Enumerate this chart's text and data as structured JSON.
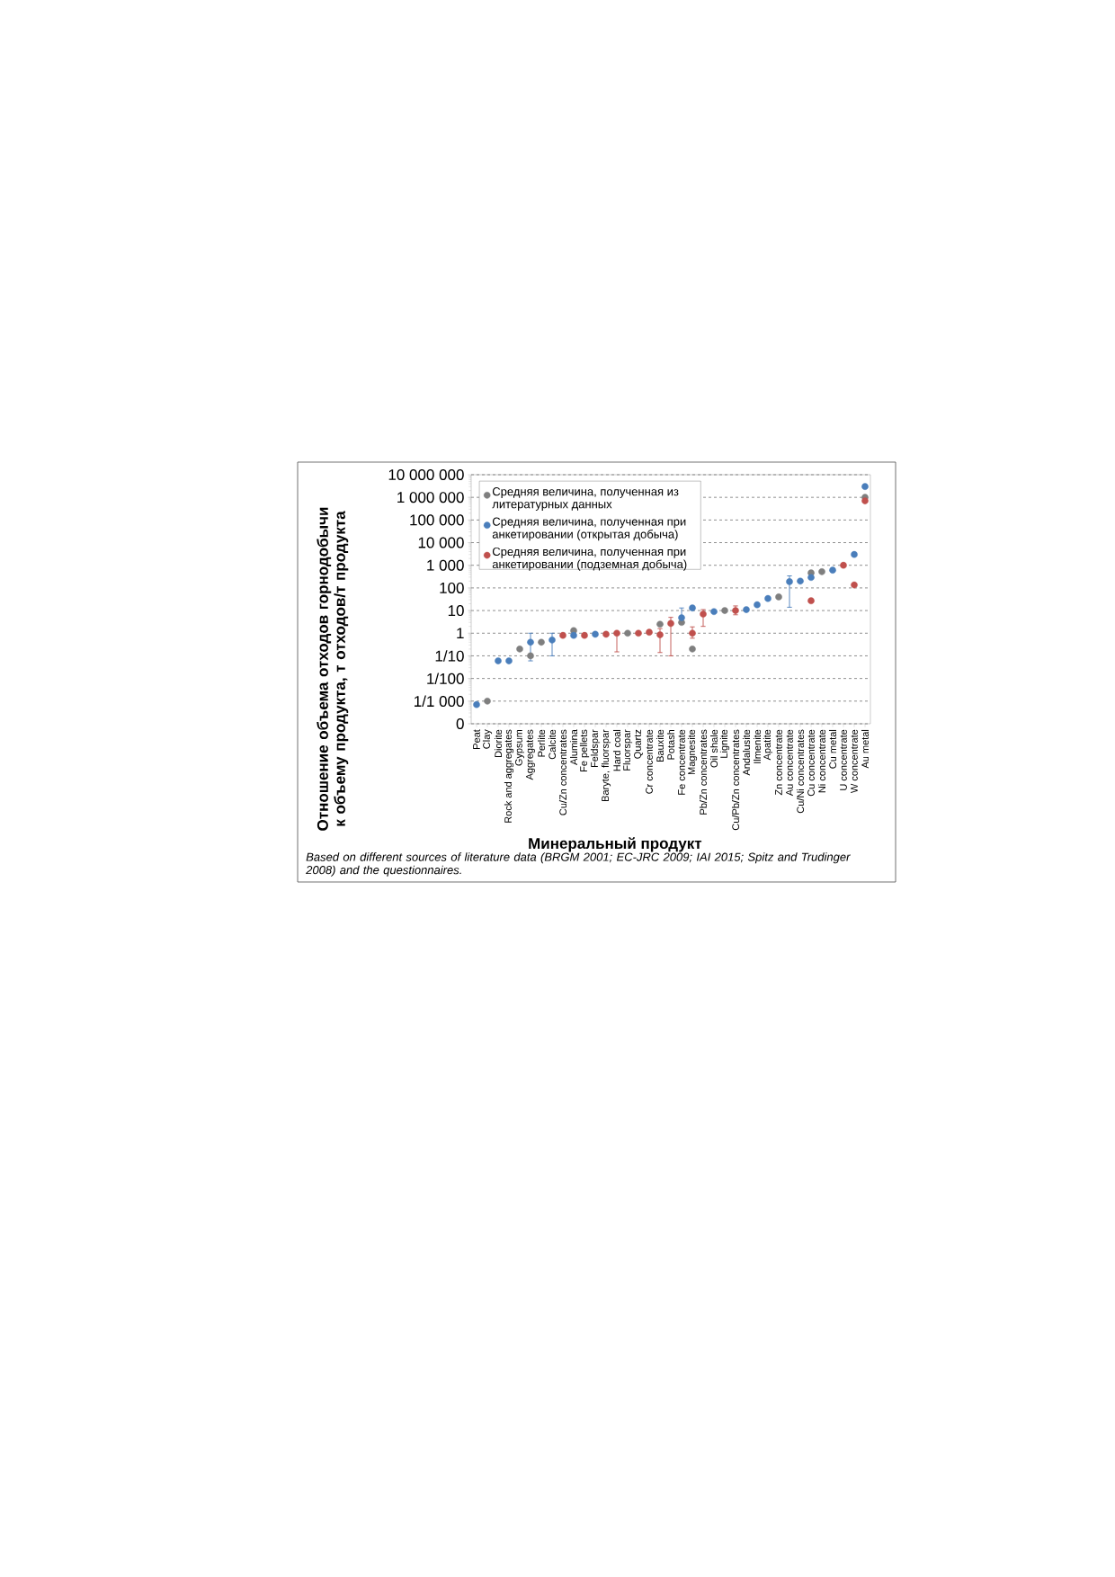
{
  "chart_data": {
    "type": "scatter",
    "xlabel": "Минеральный продукт",
    "ylabel": "Отношение объема отходов горнодобычи к объему продукта, т отходов/т продукта",
    "annotations": [
      "Based on different sources of literature data (BRGM 2001; EC-JRC 2009; IAI 2015; Spitz and Trudinger 2008) and the questionnaires."
    ],
    "categories": [
      "Peat",
      "Clay",
      "Diorite",
      "Rock and aggregates",
      "Gypsum",
      "Aggregates",
      "Perlite",
      "Calcite",
      "Cu/Zn concentrates",
      "Alumina",
      "Fe pellets",
      "Feldspar",
      "Baryte, fluorspar",
      "Hard coal",
      "Fluorspar",
      "Quartz",
      "Cr concentrate",
      "Bauxite",
      "Potash",
      "Fe concentrate",
      "Magnesite",
      "Pb/Zn concentrates",
      "Oil shale",
      "Lignite",
      "Cu/Pb/Zn concentrates",
      "Andalusite",
      "Ilmenite",
      "Apatite",
      "Zn concentrate",
      "Au concentrate",
      "Cu/Ni concentrates",
      "Cu concentrate",
      "Ni concentrate",
      "Cu metal",
      "U concentrate",
      "W concentrate",
      "Au metal"
    ],
    "series": [
      {
        "name": "Средняя величина, полученная из литературных данных",
        "color": "#7f7f7f",
        "values": [
          null,
          0.001,
          null,
          null,
          0.2,
          0.1,
          0.4,
          null,
          null,
          1.3,
          null,
          null,
          null,
          null,
          1,
          null,
          null,
          2.5,
          null,
          3,
          0.2,
          null,
          null,
          10,
          null,
          null,
          null,
          null,
          40,
          null,
          null,
          460,
          520,
          null,
          null,
          null,
          1000000
        ]
      },
      {
        "name": "Средняя величина, полученная при анкетировании (открытая добыча)",
        "color": "#4a7ebb",
        "values": [
          0.0007,
          null,
          0.06,
          0.06,
          null,
          0.4,
          null,
          0.5,
          null,
          0.8,
          null,
          0.9,
          null,
          null,
          null,
          null,
          null,
          null,
          null,
          4.8,
          13,
          null,
          9,
          null,
          null,
          11,
          18,
          34,
          null,
          190,
          200,
          290,
          null,
          610,
          null,
          3000,
          3000000
        ],
        "errors": [
          null,
          null,
          null,
          null,
          null,
          [
            0.06,
            1
          ],
          null,
          [
            0.1,
            1
          ],
          null,
          null,
          null,
          null,
          null,
          null,
          null,
          null,
          null,
          null,
          null,
          [
            2.5,
            13
          ],
          null,
          null,
          null,
          null,
          null,
          null,
          null,
          null,
          null,
          [
            14,
            340
          ],
          null,
          null,
          null,
          null,
          null,
          null,
          null
        ]
      },
      {
        "name": "Средняя величина, полученная при анкетировании (подземная добыча)",
        "color": "#c0504d",
        "values": [
          null,
          null,
          null,
          null,
          null,
          null,
          null,
          null,
          0.8,
          null,
          0.8,
          null,
          0.9,
          1,
          null,
          1,
          1.1,
          0.85,
          2.7,
          null,
          1,
          7,
          null,
          null,
          10,
          null,
          null,
          null,
          null,
          null,
          null,
          27,
          null,
          null,
          1000,
          135,
          700000
        ],
        "errors": [
          null,
          null,
          null,
          null,
          null,
          null,
          null,
          null,
          null,
          null,
          null,
          null,
          null,
          [
            0.15,
            1
          ],
          null,
          null,
          null,
          [
            0.14,
            1.6
          ],
          [
            0.1,
            5
          ],
          null,
          [
            0.6,
            1.9
          ],
          [
            2,
            11
          ],
          null,
          null,
          [
            6.5,
            16
          ],
          null,
          null,
          null,
          null,
          null,
          null,
          null,
          null,
          null,
          null,
          null,
          null
        ]
      }
    ],
    "log": "y",
    "ylim": [
      0.0001,
      10000000
    ],
    "yticks": [
      {
        "value": 0.0001,
        "label": "0"
      },
      {
        "value": 0.001,
        "label": "1/1 000"
      },
      {
        "value": 0.01,
        "label": "1/100"
      },
      {
        "value": 0.1,
        "label": "1/10"
      },
      1,
      10,
      100,
      {
        "value": 1000,
        "label": "1 000"
      },
      {
        "value": 10000,
        "label": "10 000"
      },
      {
        "value": 100000,
        "label": "100 000"
      },
      {
        "value": 1000000,
        "label": "1 000  000"
      },
      {
        "value": 10000000,
        "label": "10 000  000"
      }
    ],
    "grid": "y",
    "legend": "top left",
    "marker": "circle"
  }
}
